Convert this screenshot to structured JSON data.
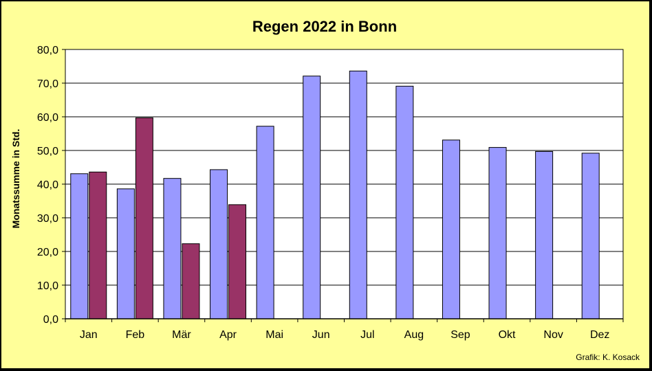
{
  "chart_data": {
    "type": "bar",
    "title": "Regen 2022 in Bonn",
    "xlabel": "",
    "ylabel": "Monatssumme in Std.",
    "categories": [
      "Jan",
      "Feb",
      "Mär",
      "Apr",
      "Mai",
      "Jun",
      "Jul",
      "Aug",
      "Sep",
      "Okt",
      "Nov",
      "Dez"
    ],
    "series": [
      {
        "values": [
          43.1,
          38.6,
          41.7,
          44.3,
          57.2,
          72.1,
          73.6,
          69.1,
          53.1,
          50.9,
          49.7,
          49.2
        ],
        "color": "#9999ff"
      },
      {
        "values": [
          43.6,
          59.7,
          22.3,
          33.9,
          null,
          null,
          null,
          null,
          null,
          null,
          null,
          null
        ],
        "color": "#993366"
      }
    ],
    "ylim": [
      0,
      80
    ],
    "yticks": [
      "0,0",
      "10,0",
      "20,0",
      "30,0",
      "40,0",
      "50,0",
      "60,0",
      "70,0",
      "80,0"
    ],
    "grid": true,
    "plot_background": "#ffffff",
    "page_background": "#ffff99",
    "credit": "Grafik:  K. Kosack"
  }
}
